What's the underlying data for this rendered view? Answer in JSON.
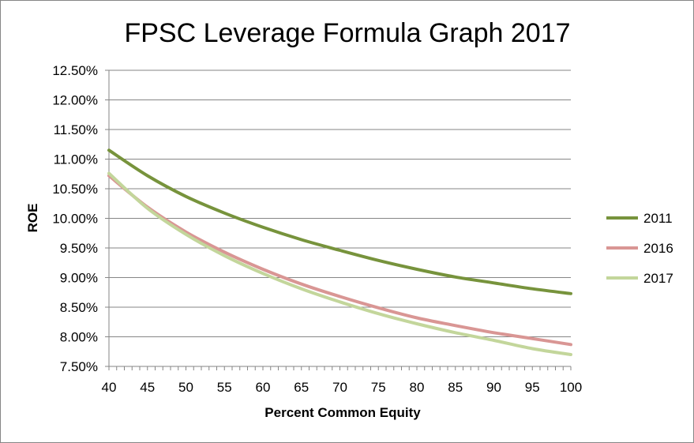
{
  "chart_data": {
    "type": "line",
    "title": "FPSC Leverage Formula Graph 2017",
    "xlabel": "Percent Common Equity",
    "ylabel": "ROE",
    "xlim": [
      40,
      100
    ],
    "ylim": [
      7.5,
      12.5
    ],
    "x_ticks": [
      40,
      45,
      50,
      55,
      60,
      65,
      70,
      75,
      80,
      85,
      90,
      95,
      100
    ],
    "y_ticks": [
      7.5,
      8.0,
      8.5,
      9.0,
      9.5,
      10.0,
      10.5,
      11.0,
      11.5,
      12.0,
      12.5
    ],
    "y_tick_labels": [
      "7.50%",
      "8.00%",
      "8.50%",
      "9.00%",
      "9.50%",
      "10.00%",
      "10.50%",
      "11.00%",
      "11.50%",
      "12.00%",
      "12.50%"
    ],
    "grid": "horizontal",
    "legend_position": "right",
    "x": [
      40,
      45,
      50,
      55,
      60,
      65,
      70,
      75,
      80,
      85,
      90,
      95,
      100
    ],
    "series": [
      {
        "name": "2011",
        "color": "#77933C",
        "values": [
          11.15,
          10.72,
          10.37,
          10.09,
          9.85,
          9.64,
          9.46,
          9.29,
          9.14,
          9.01,
          8.91,
          8.81,
          8.73
        ]
      },
      {
        "name": "2016",
        "color": "#D99694",
        "values": [
          10.72,
          10.19,
          9.77,
          9.43,
          9.14,
          8.89,
          8.68,
          8.49,
          8.32,
          8.19,
          8.07,
          7.97,
          7.87
        ]
      },
      {
        "name": "2017",
        "color": "#C3D69B",
        "values": [
          10.76,
          10.17,
          9.73,
          9.37,
          9.07,
          8.81,
          8.59,
          8.39,
          8.22,
          8.07,
          7.94,
          7.8,
          7.7
        ]
      }
    ]
  }
}
